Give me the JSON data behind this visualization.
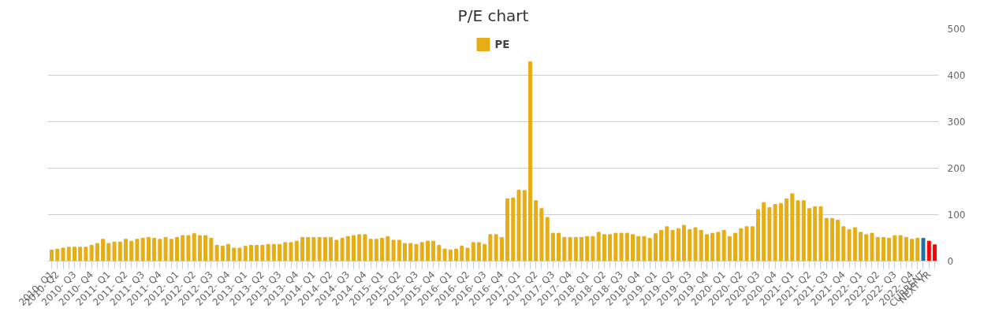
{
  "chart_data": {
    "type": "bar",
    "title": "P/E chart",
    "categories": [
      "2010- Q1",
      "2010- Q2",
      null,
      null,
      "2010- Q3",
      null,
      null,
      "2010- Q4",
      null,
      null,
      "2011- Q1",
      null,
      null,
      "2011- Q2",
      null,
      null,
      "2011- Q3",
      null,
      null,
      "2011- Q4",
      null,
      null,
      "2012- Q1",
      null,
      null,
      "2012- Q2",
      null,
      null,
      "2012- Q3",
      null,
      null,
      "2012- Q4",
      null,
      null,
      "2013- Q1",
      null,
      null,
      "2013- Q2",
      null,
      null,
      "2013- Q3",
      null,
      null,
      "2013- Q4",
      null,
      null,
      "2014- Q1",
      null,
      null,
      "2014- Q2",
      null,
      null,
      "2014- Q3",
      null,
      null,
      "2014- Q4",
      null,
      null,
      "2015- Q1",
      null,
      null,
      "2015- Q2",
      null,
      null,
      "2015- Q3",
      null,
      null,
      "2015- Q4",
      null,
      null,
      "2016- Q1",
      null,
      null,
      "2016- Q2",
      null,
      null,
      "2016- Q3",
      null,
      null,
      "2016- Q4",
      null,
      null,
      "2017- Q1",
      null,
      null,
      "2017- Q2",
      null,
      null,
      "2017- Q3",
      null,
      null,
      "2017- Q4",
      null,
      null,
      "2018- Q1",
      null,
      null,
      "2018- Q2",
      null,
      null,
      "2018- Q3",
      null,
      null,
      "2018- Q4",
      null,
      null,
      "2019- Q1",
      null,
      null,
      "2019- Q2",
      null,
      null,
      "2019- Q3",
      null,
      null,
      "2019- Q4",
      null,
      null,
      "2020- Q1",
      null,
      null,
      "2020- Q2",
      null,
      null,
      "2020- Q3",
      null,
      null,
      "2020- Q4",
      null,
      null,
      "2021- Q1",
      null,
      null,
      "2021- Q2",
      null,
      null,
      "2021- Q3",
      null,
      null,
      "2021- Q4",
      null,
      null,
      "2022- Q1",
      null,
      null,
      "2022- Q2",
      null,
      null,
      "2022- Q3",
      null,
      null,
      "2022- Q4",
      null,
      "CURRENT",
      "NEXT YR",
      null
    ],
    "series": [
      {
        "name": "PE",
        "color": "#e6ad14",
        "values": [
          24,
          26,
          28,
          30,
          30,
          30,
          30,
          34,
          38,
          47,
          38,
          41,
          41,
          47,
          43,
          47,
          49,
          51,
          49,
          47,
          51,
          47,
          51,
          55,
          55,
          59,
          55,
          55,
          49,
          34,
          32,
          36,
          28,
          28,
          32,
          34,
          34,
          34,
          36,
          36,
          36,
          40,
          40,
          43,
          51,
          51,
          51,
          51,
          51,
          51,
          45,
          49,
          53,
          55,
          57,
          57,
          47,
          47,
          49,
          53,
          45,
          45,
          38,
          38,
          36,
          40,
          43,
          43,
          34,
          26,
          24,
          26,
          32,
          28,
          40,
          40,
          36,
          57,
          57,
          51,
          134,
          136,
          153,
          152,
          429,
          130,
          113,
          94,
          60,
          60,
          51,
          51,
          51,
          51,
          53,
          53,
          62,
          57,
          57,
          60,
          60,
          60,
          57,
          53,
          53,
          49,
          59,
          66,
          74,
          66,
          70,
          77,
          68,
          72,
          66,
          57,
          60,
          62,
          66,
          53,
          60,
          70,
          74,
          74,
          111,
          126,
          115,
          122,
          124,
          134,
          145,
          130,
          130,
          113,
          117,
          117,
          92,
          92,
          88,
          74,
          68,
          72,
          62,
          57,
          60,
          51,
          51,
          49,
          55,
          55,
          51,
          47,
          49,
          49,
          43,
          35
        ],
        "colors": [
          "#e6ad14",
          "#e6ad14",
          "#e6ad14",
          "#e6ad14",
          "#e6ad14",
          "#e6ad14",
          "#e6ad14",
          "#e6ad14",
          "#e6ad14",
          "#e6ad14",
          "#e6ad14",
          "#e6ad14",
          "#e6ad14",
          "#e6ad14",
          "#e6ad14",
          "#e6ad14",
          "#e6ad14",
          "#e6ad14",
          "#e6ad14",
          "#e6ad14",
          "#e6ad14",
          "#e6ad14",
          "#e6ad14",
          "#e6ad14",
          "#e6ad14",
          "#e6ad14",
          "#e6ad14",
          "#e6ad14",
          "#e6ad14",
          "#e6ad14",
          "#e6ad14",
          "#e6ad14",
          "#e6ad14",
          "#e6ad14",
          "#e6ad14",
          "#e6ad14",
          "#e6ad14",
          "#e6ad14",
          "#e6ad14",
          "#e6ad14",
          "#e6ad14",
          "#e6ad14",
          "#e6ad14",
          "#e6ad14",
          "#e6ad14",
          "#e6ad14",
          "#e6ad14",
          "#e6ad14",
          "#e6ad14",
          "#e6ad14",
          "#e6ad14",
          "#e6ad14",
          "#e6ad14",
          "#e6ad14",
          "#e6ad14",
          "#e6ad14",
          "#e6ad14",
          "#e6ad14",
          "#e6ad14",
          "#e6ad14",
          "#e6ad14",
          "#e6ad14",
          "#e6ad14",
          "#e6ad14",
          "#e6ad14",
          "#e6ad14",
          "#e6ad14",
          "#e6ad14",
          "#e6ad14",
          "#e6ad14",
          "#e6ad14",
          "#e6ad14",
          "#e6ad14",
          "#e6ad14",
          "#e6ad14",
          "#e6ad14",
          "#e6ad14",
          "#e6ad14",
          "#e6ad14",
          "#e6ad14",
          "#e6ad14",
          "#e6ad14",
          "#e6ad14",
          "#e6ad14",
          "#e6ad14",
          "#e6ad14",
          "#e6ad14",
          "#e6ad14",
          "#e6ad14",
          "#e6ad14",
          "#e6ad14",
          "#e6ad14",
          "#e6ad14",
          "#e6ad14",
          "#e6ad14",
          "#e6ad14",
          "#e6ad14",
          "#e6ad14",
          "#e6ad14",
          "#e6ad14",
          "#e6ad14",
          "#e6ad14",
          "#e6ad14",
          "#e6ad14",
          "#e6ad14",
          "#e6ad14",
          "#e6ad14",
          "#e6ad14",
          "#e6ad14",
          "#e6ad14",
          "#e6ad14",
          "#e6ad14",
          "#e6ad14",
          "#e6ad14",
          "#e6ad14",
          "#e6ad14",
          "#e6ad14",
          "#e6ad14",
          "#e6ad14",
          "#e6ad14",
          "#e6ad14",
          "#e6ad14",
          "#e6ad14",
          "#e6ad14",
          "#e6ad14",
          "#e6ad14",
          "#e6ad14",
          "#e6ad14",
          "#e6ad14",
          "#e6ad14",
          "#e6ad14",
          "#e6ad14",
          "#e6ad14",
          "#e6ad14",
          "#e6ad14",
          "#e6ad14",
          "#e6ad14",
          "#e6ad14",
          "#e6ad14",
          "#e6ad14",
          "#e6ad14",
          "#e6ad14",
          "#e6ad14",
          "#e6ad14",
          "#e6ad14",
          "#e6ad14",
          "#e6ad14",
          "#e6ad14",
          "#e6ad14",
          "#e6ad14",
          "#e6ad14",
          "#e6ad14",
          "#e6ad14",
          "#1f6fa8",
          "#ff0000",
          "#ff0000"
        ]
      }
    ],
    "ylim": [
      0,
      500
    ],
    "yticks": [
      0,
      100,
      200,
      300,
      400,
      500
    ],
    "grid": "y",
    "legend": "top"
  }
}
